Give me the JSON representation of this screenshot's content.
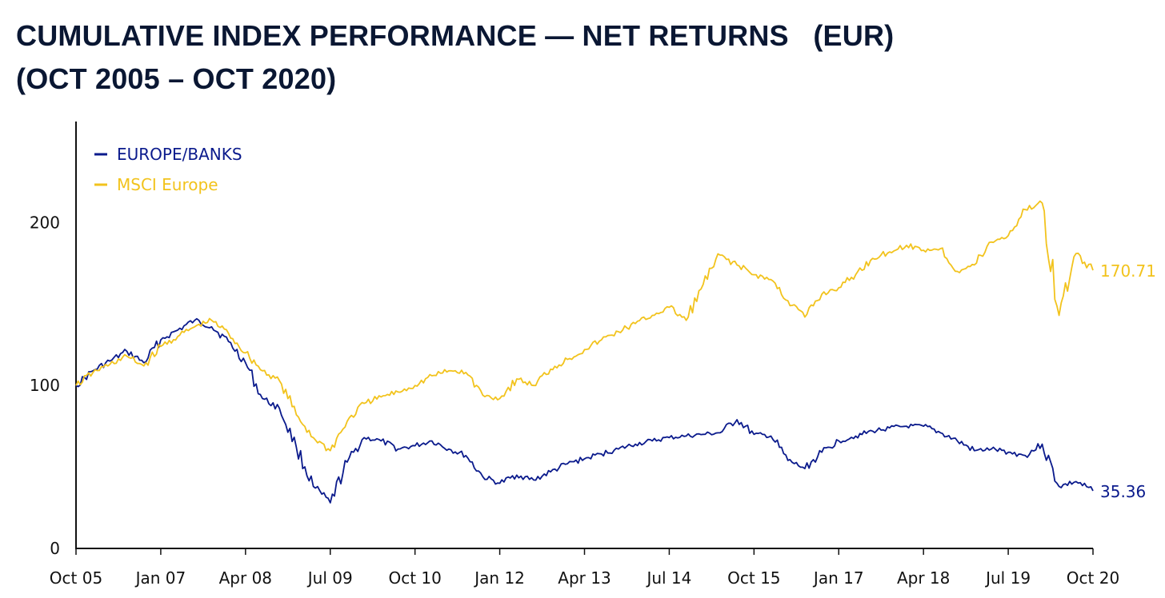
{
  "title_line1": "CUMULATIVE INDEX PERFORMANCE — NET RETURNS   (EUR)",
  "title_line2": "(OCT 2005 – OCT 2020)",
  "chart_data": {
    "type": "line",
    "title": "CUMULATIVE INDEX PERFORMANCE — NET RETURNS (EUR) (OCT 2005 – OCT 2020)",
    "xlabel": "",
    "ylabel": "",
    "x_ticks": [
      "Oct 05",
      "Jan 07",
      "Apr 08",
      "Jul 09",
      "Oct 10",
      "Jan 12",
      "Apr 13",
      "Jul 14",
      "Oct 15",
      "Jan 17",
      "Apr 18",
      "Jul 19",
      "Oct 20"
    ],
    "y_ticks": [
      0,
      100,
      200
    ],
    "ylim": [
      0,
      262
    ],
    "x": [
      "2005-10",
      "2006-01",
      "2006-04",
      "2006-07",
      "2006-10",
      "2007-01",
      "2007-04",
      "2007-07",
      "2007-10",
      "2008-01",
      "2008-04",
      "2008-07",
      "2008-10",
      "2009-01",
      "2009-04",
      "2009-07",
      "2009-10",
      "2010-01",
      "2010-04",
      "2010-07",
      "2010-10",
      "2011-01",
      "2011-04",
      "2011-07",
      "2011-10",
      "2012-01",
      "2012-04",
      "2012-07",
      "2012-10",
      "2013-01",
      "2013-04",
      "2013-07",
      "2013-10",
      "2014-01",
      "2014-04",
      "2014-07",
      "2014-10",
      "2015-01",
      "2015-04",
      "2015-07",
      "2015-10",
      "2016-01",
      "2016-04",
      "2016-07",
      "2016-10",
      "2017-01",
      "2017-04",
      "2017-07",
      "2017-10",
      "2018-01",
      "2018-04",
      "2018-07",
      "2018-10",
      "2019-01",
      "2019-04",
      "2019-07",
      "2019-10",
      "2020-01",
      "2020-04",
      "2020-07",
      "2020-10"
    ],
    "series": [
      {
        "name": "EUROPE/BANKS",
        "color": "#0a1a8c",
        "end_label": "35.36",
        "values": [
          100,
          109,
          115,
          121,
          114,
          128,
          134,
          140,
          136,
          127,
          114,
          92,
          86,
          62,
          38,
          28,
          53,
          68,
          66,
          61,
          63,
          66,
          61,
          57,
          44,
          40,
          45,
          42,
          47,
          52,
          55,
          58,
          61,
          64,
          66,
          68,
          69,
          70,
          71,
          79,
          70,
          69,
          54,
          49,
          59,
          66,
          69,
          72,
          74,
          75,
          75,
          71,
          66,
          60,
          61,
          59,
          57,
          64,
          38,
          41,
          35.36
        ]
      },
      {
        "name": "MSCI Europe",
        "color": "#f2c31d",
        "end_label": "170.71",
        "values": [
          100,
          108,
          113,
          118,
          112,
          124,
          130,
          136,
          140,
          132,
          120,
          109,
          103,
          82,
          68,
          60,
          78,
          89,
          93,
          96,
          100,
          106,
          109,
          108,
          94,
          92,
          104,
          100,
          110,
          116,
          122,
          128,
          133,
          138,
          143,
          148,
          140,
          162,
          180,
          174,
          168,
          165,
          152,
          142,
          156,
          160,
          168,
          178,
          182,
          186,
          183,
          184,
          170,
          174,
          188,
          192,
          208,
          212,
          143,
          181,
          170.71
        ]
      }
    ],
    "legend": "top-left",
    "grid": false
  }
}
